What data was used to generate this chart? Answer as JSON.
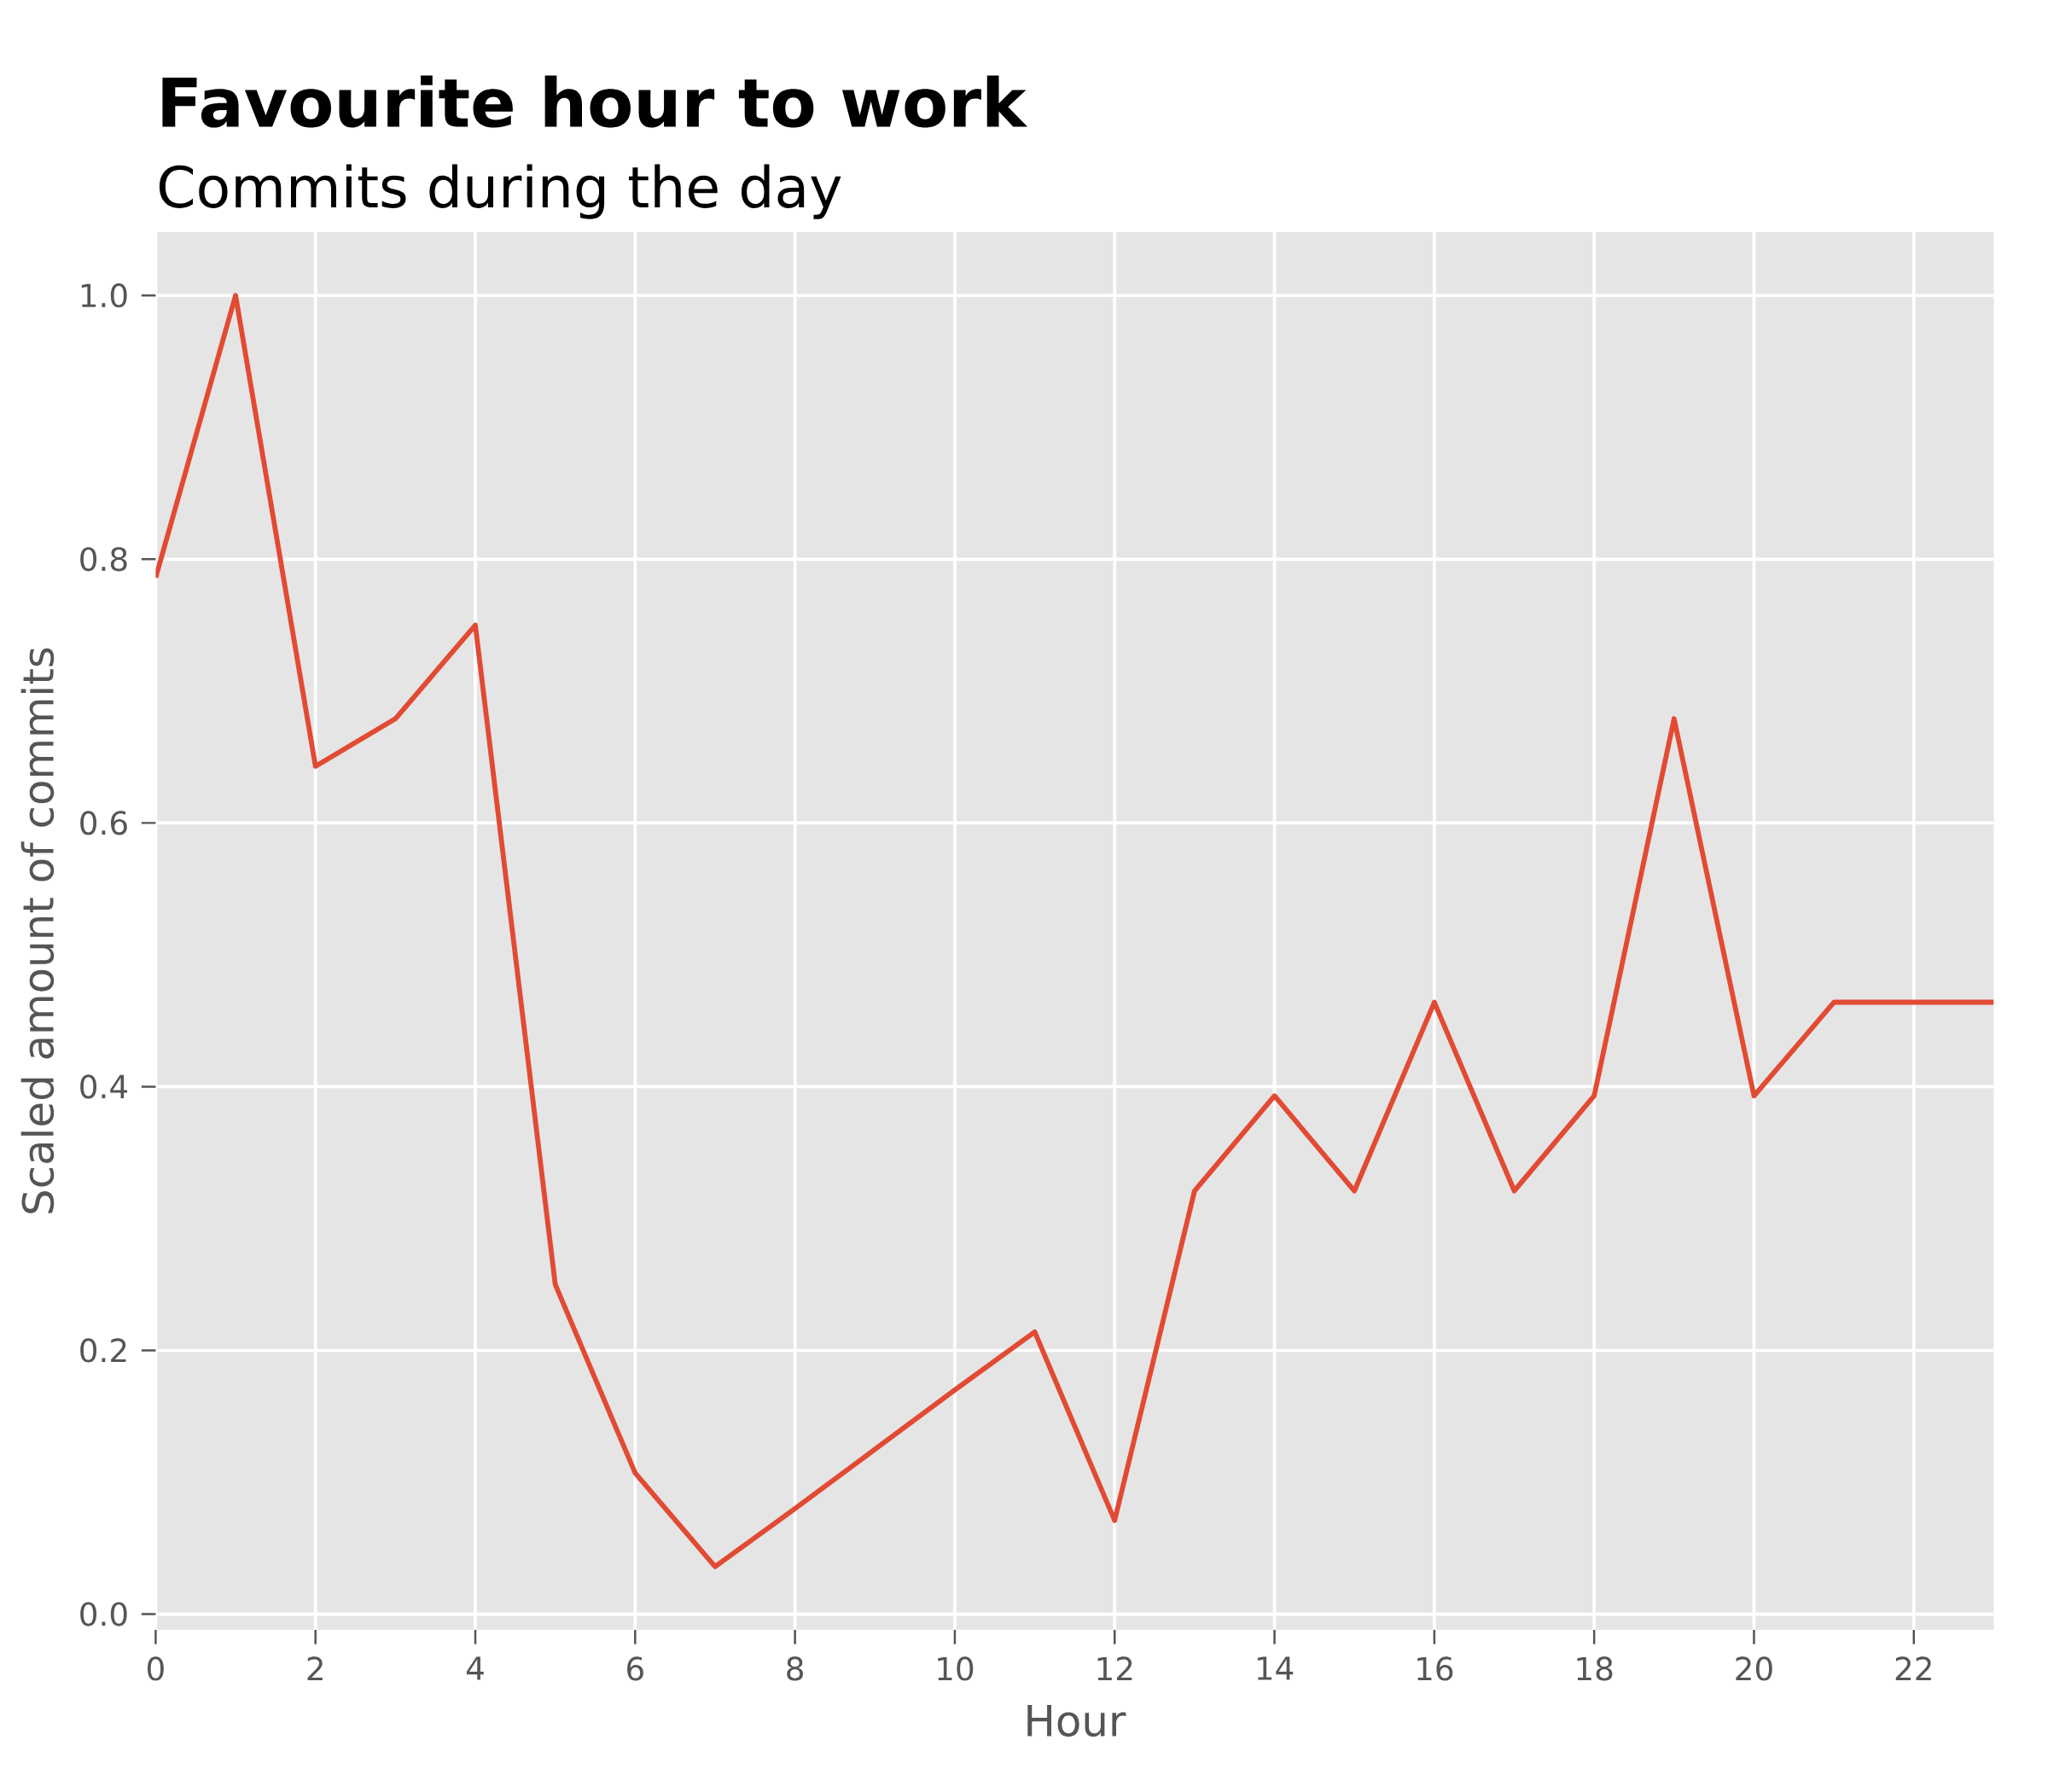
{
  "chart_data": {
    "type": "line",
    "title": "Favourite hour to work",
    "subtitle": "Commits during the day",
    "xlabel": "Hour",
    "ylabel": "Scaled amount of commits",
    "x": [
      0,
      1,
      2,
      3,
      4,
      5,
      6,
      7,
      8,
      9,
      10,
      11,
      12,
      13,
      14,
      15,
      16,
      17,
      18,
      19,
      20,
      21,
      22,
      23
    ],
    "values": [
      0.786,
      1.0,
      0.643,
      0.679,
      0.75,
      0.25,
      0.107,
      0.036,
      0.08,
      0.125,
      0.17,
      0.214,
      0.071,
      0.321,
      0.393,
      0.321,
      0.464,
      0.321,
      0.393,
      0.679,
      0.393,
      0.464,
      0.464,
      0.464
    ],
    "color": "#e24a33",
    "line_style": "solid",
    "grid": true,
    "xlim": [
      0,
      23
    ],
    "ylim": [
      -0.012,
      1.048
    ],
    "xticks": [
      0,
      2,
      4,
      6,
      8,
      10,
      12,
      14,
      16,
      18,
      20,
      22
    ],
    "yticks": [
      {
        "value": 0,
        "label": "0.0"
      },
      {
        "value": 0.2,
        "label": "0.2"
      },
      {
        "value": 0.4,
        "label": "0.4"
      },
      {
        "value": 0.6,
        "label": "0.6"
      },
      {
        "value": 0.8,
        "label": "0.8"
      },
      {
        "value": 1,
        "label": "1.0"
      }
    ]
  }
}
